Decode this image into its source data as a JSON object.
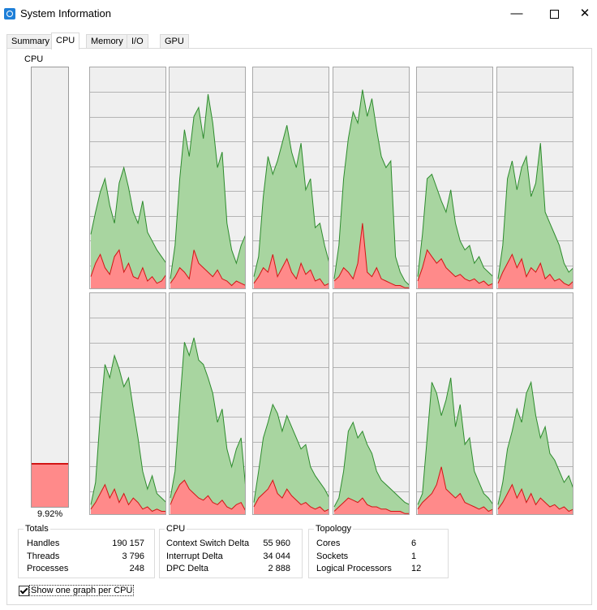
{
  "window": {
    "title": "System Information",
    "icon": "system-info-icon"
  },
  "tabs": [
    "Summary",
    "CPU",
    "Memory",
    "I/O",
    "GPU"
  ],
  "active_tab": "CPU",
  "cpu": {
    "label": "CPU",
    "usage_text": "9.92%",
    "usage_fraction": 0.0992
  },
  "colors": {
    "total_fill": "#a8d5a0",
    "total_line": "#2d8b2d",
    "kernel_fill": "#ff8a8a",
    "kernel_line": "#d21515",
    "graph_bg": "#efefef",
    "grid": "#a0a0a0"
  },
  "cpu_graphs": [
    {
      "total": [
        0.25,
        0.35,
        0.44,
        0.5,
        0.38,
        0.3,
        0.48,
        0.55,
        0.46,
        0.35,
        0.3,
        0.4,
        0.26,
        0.22,
        0.18,
        0.15,
        0.12
      ],
      "kernel": [
        0.06,
        0.12,
        0.16,
        0.1,
        0.07,
        0.15,
        0.18,
        0.08,
        0.12,
        0.06,
        0.05,
        0.1,
        0.04,
        0.06,
        0.03,
        0.04,
        0.07
      ]
    },
    {
      "total": [
        0.05,
        0.2,
        0.5,
        0.72,
        0.6,
        0.78,
        0.82,
        0.68,
        0.88,
        0.75,
        0.55,
        0.62,
        0.3,
        0.18,
        0.12,
        0.2,
        0.25
      ],
      "kernel": [
        0.03,
        0.06,
        0.1,
        0.08,
        0.05,
        0.18,
        0.12,
        0.1,
        0.08,
        0.06,
        0.09,
        0.05,
        0.04,
        0.02,
        0.04,
        0.03,
        0.02
      ]
    },
    {
      "total": [
        0.06,
        0.15,
        0.42,
        0.6,
        0.52,
        0.58,
        0.66,
        0.74,
        0.62,
        0.55,
        0.66,
        0.45,
        0.5,
        0.28,
        0.3,
        0.2,
        0.12
      ],
      "kernel": [
        0.03,
        0.06,
        0.1,
        0.08,
        0.16,
        0.06,
        0.1,
        0.14,
        0.08,
        0.05,
        0.12,
        0.07,
        0.09,
        0.04,
        0.05,
        0.02,
        0.03
      ]
    },
    {
      "total": [
        0.05,
        0.2,
        0.5,
        0.68,
        0.8,
        0.75,
        0.9,
        0.78,
        0.86,
        0.72,
        0.6,
        0.55,
        0.58,
        0.15,
        0.08,
        0.04,
        0.02
      ],
      "kernel": [
        0.04,
        0.06,
        0.1,
        0.08,
        0.05,
        0.12,
        0.3,
        0.08,
        0.06,
        0.1,
        0.05,
        0.04,
        0.03,
        0.02,
        0.02,
        0.01,
        0.01
      ]
    },
    {
      "total": [
        0.06,
        0.25,
        0.5,
        0.52,
        0.46,
        0.4,
        0.35,
        0.45,
        0.3,
        0.22,
        0.18,
        0.2,
        0.12,
        0.15,
        0.1,
        0.08,
        0.06
      ],
      "kernel": [
        0.04,
        0.1,
        0.18,
        0.15,
        0.12,
        0.14,
        0.1,
        0.08,
        0.06,
        0.07,
        0.05,
        0.04,
        0.05,
        0.03,
        0.04,
        0.02,
        0.03
      ]
    },
    {
      "total": [
        0.05,
        0.2,
        0.5,
        0.58,
        0.45,
        0.55,
        0.6,
        0.42,
        0.48,
        0.66,
        0.35,
        0.3,
        0.25,
        0.2,
        0.12,
        0.08,
        0.1
      ],
      "kernel": [
        0.03,
        0.08,
        0.12,
        0.16,
        0.1,
        0.14,
        0.06,
        0.1,
        0.08,
        0.12,
        0.05,
        0.07,
        0.04,
        0.05,
        0.03,
        0.02,
        0.04
      ]
    },
    {
      "total": [
        0.05,
        0.15,
        0.45,
        0.68,
        0.62,
        0.72,
        0.66,
        0.58,
        0.62,
        0.48,
        0.35,
        0.2,
        0.12,
        0.18,
        0.1,
        0.08,
        0.06
      ],
      "kernel": [
        0.03,
        0.06,
        0.1,
        0.14,
        0.08,
        0.12,
        0.06,
        0.1,
        0.05,
        0.08,
        0.06,
        0.03,
        0.04,
        0.02,
        0.03,
        0.02,
        0.02
      ]
    },
    {
      "total": [
        0.08,
        0.2,
        0.5,
        0.78,
        0.72,
        0.8,
        0.7,
        0.68,
        0.62,
        0.55,
        0.42,
        0.48,
        0.3,
        0.22,
        0.3,
        0.35,
        0.12
      ],
      "kernel": [
        0.05,
        0.1,
        0.14,
        0.16,
        0.12,
        0.1,
        0.08,
        0.07,
        0.09,
        0.06,
        0.05,
        0.07,
        0.04,
        0.03,
        0.05,
        0.06,
        0.02
      ]
    },
    {
      "total": [
        0.06,
        0.2,
        0.35,
        0.42,
        0.5,
        0.46,
        0.38,
        0.45,
        0.4,
        0.35,
        0.3,
        0.32,
        0.22,
        0.18,
        0.15,
        0.12,
        0.08
      ],
      "kernel": [
        0.04,
        0.08,
        0.1,
        0.12,
        0.16,
        0.1,
        0.08,
        0.12,
        0.09,
        0.07,
        0.05,
        0.06,
        0.04,
        0.03,
        0.04,
        0.02,
        0.03
      ]
    },
    {
      "total": [
        0.04,
        0.08,
        0.2,
        0.38,
        0.42,
        0.35,
        0.38,
        0.32,
        0.28,
        0.2,
        0.16,
        0.14,
        0.12,
        0.1,
        0.08,
        0.06,
        0.05
      ],
      "kernel": [
        0.02,
        0.04,
        0.06,
        0.08,
        0.07,
        0.06,
        0.08,
        0.05,
        0.04,
        0.04,
        0.03,
        0.03,
        0.02,
        0.02,
        0.02,
        0.01,
        0.01
      ]
    },
    {
      "total": [
        0.05,
        0.1,
        0.35,
        0.6,
        0.55,
        0.45,
        0.52,
        0.62,
        0.4,
        0.5,
        0.32,
        0.35,
        0.2,
        0.15,
        0.1,
        0.08,
        0.05
      ],
      "kernel": [
        0.03,
        0.06,
        0.08,
        0.1,
        0.14,
        0.22,
        0.12,
        0.1,
        0.08,
        0.1,
        0.06,
        0.05,
        0.04,
        0.03,
        0.04,
        0.02,
        0.03
      ]
    },
    {
      "total": [
        0.05,
        0.15,
        0.3,
        0.38,
        0.48,
        0.42,
        0.55,
        0.6,
        0.45,
        0.35,
        0.4,
        0.28,
        0.25,
        0.2,
        0.15,
        0.18,
        0.12
      ],
      "kernel": [
        0.03,
        0.06,
        0.1,
        0.14,
        0.08,
        0.12,
        0.06,
        0.1,
        0.05,
        0.08,
        0.06,
        0.04,
        0.05,
        0.03,
        0.04,
        0.02,
        0.03
      ]
    }
  ],
  "totals": {
    "title": "Totals",
    "rows": [
      {
        "label": "Handles",
        "value": "190 157"
      },
      {
        "label": "Threads",
        "value": "3 796"
      },
      {
        "label": "Processes",
        "value": "248"
      }
    ]
  },
  "cpu_stats": {
    "title": "CPU",
    "rows": [
      {
        "label": "Context Switch Delta",
        "value": "55 960"
      },
      {
        "label": "Interrupt Delta",
        "value": "34 044"
      },
      {
        "label": "DPC Delta",
        "value": "2 888"
      }
    ]
  },
  "topology": {
    "title": "Topology",
    "rows": [
      {
        "label": "Cores",
        "value": "6"
      },
      {
        "label": "Sockets",
        "value": "1"
      },
      {
        "label": "Logical Processors",
        "value": "12"
      }
    ]
  },
  "show_per_cpu": {
    "label": "Show one graph per CPU",
    "checked": true
  }
}
